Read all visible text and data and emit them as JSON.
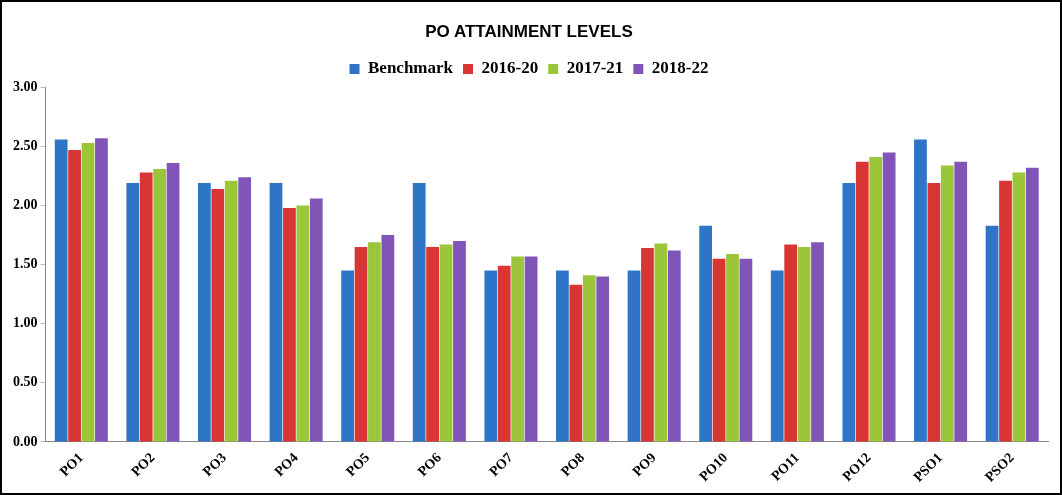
{
  "chart_data": {
    "type": "bar",
    "title": "PO ATTAINMENT LEVELS",
    "categories": [
      "PO1",
      "PO2",
      "PO3",
      "PO4",
      "PO5",
      "PO6",
      "PO7",
      "PO8",
      "PO9",
      "PO10",
      "PO11",
      "PO12",
      "PSO1",
      "PSO2"
    ],
    "series": [
      {
        "name": "Benchmark",
        "color": "#2e75c8",
        "values": [
          2.56,
          2.19,
          2.19,
          2.19,
          1.45,
          2.19,
          1.45,
          1.45,
          1.45,
          1.83,
          1.45,
          2.19,
          2.56,
          1.83
        ]
      },
      {
        "name": "2016-20",
        "color": "#d93535",
        "values": [
          2.47,
          2.28,
          2.14,
          1.98,
          1.65,
          1.65,
          1.49,
          1.33,
          1.64,
          1.55,
          1.67,
          2.37,
          2.19,
          2.21
        ]
      },
      {
        "name": "2017-21",
        "color": "#9bc63a",
        "values": [
          2.53,
          2.31,
          2.21,
          2.0,
          1.69,
          1.67,
          1.57,
          1.41,
          1.68,
          1.59,
          1.65,
          2.41,
          2.34,
          2.28
        ]
      },
      {
        "name": "2018-22",
        "color": "#8155b8",
        "values": [
          2.57,
          2.36,
          2.24,
          2.06,
          1.75,
          1.7,
          1.57,
          1.4,
          1.62,
          1.55,
          1.69,
          2.45,
          2.37,
          2.32
        ]
      }
    ],
    "ylim": [
      0,
      3
    ],
    "yticks": [
      {
        "value": 0,
        "label": "0.00"
      },
      {
        "value": 0.5,
        "label": "0.50"
      },
      {
        "value": 1,
        "label": "1.00"
      },
      {
        "value": 1.5,
        "label": "1.50"
      },
      {
        "value": 2,
        "label": "2.00"
      },
      {
        "value": 2.5,
        "label": "2.50"
      },
      {
        "value": 3,
        "label": "3.00"
      }
    ],
    "grid": false,
    "legend": "top"
  }
}
